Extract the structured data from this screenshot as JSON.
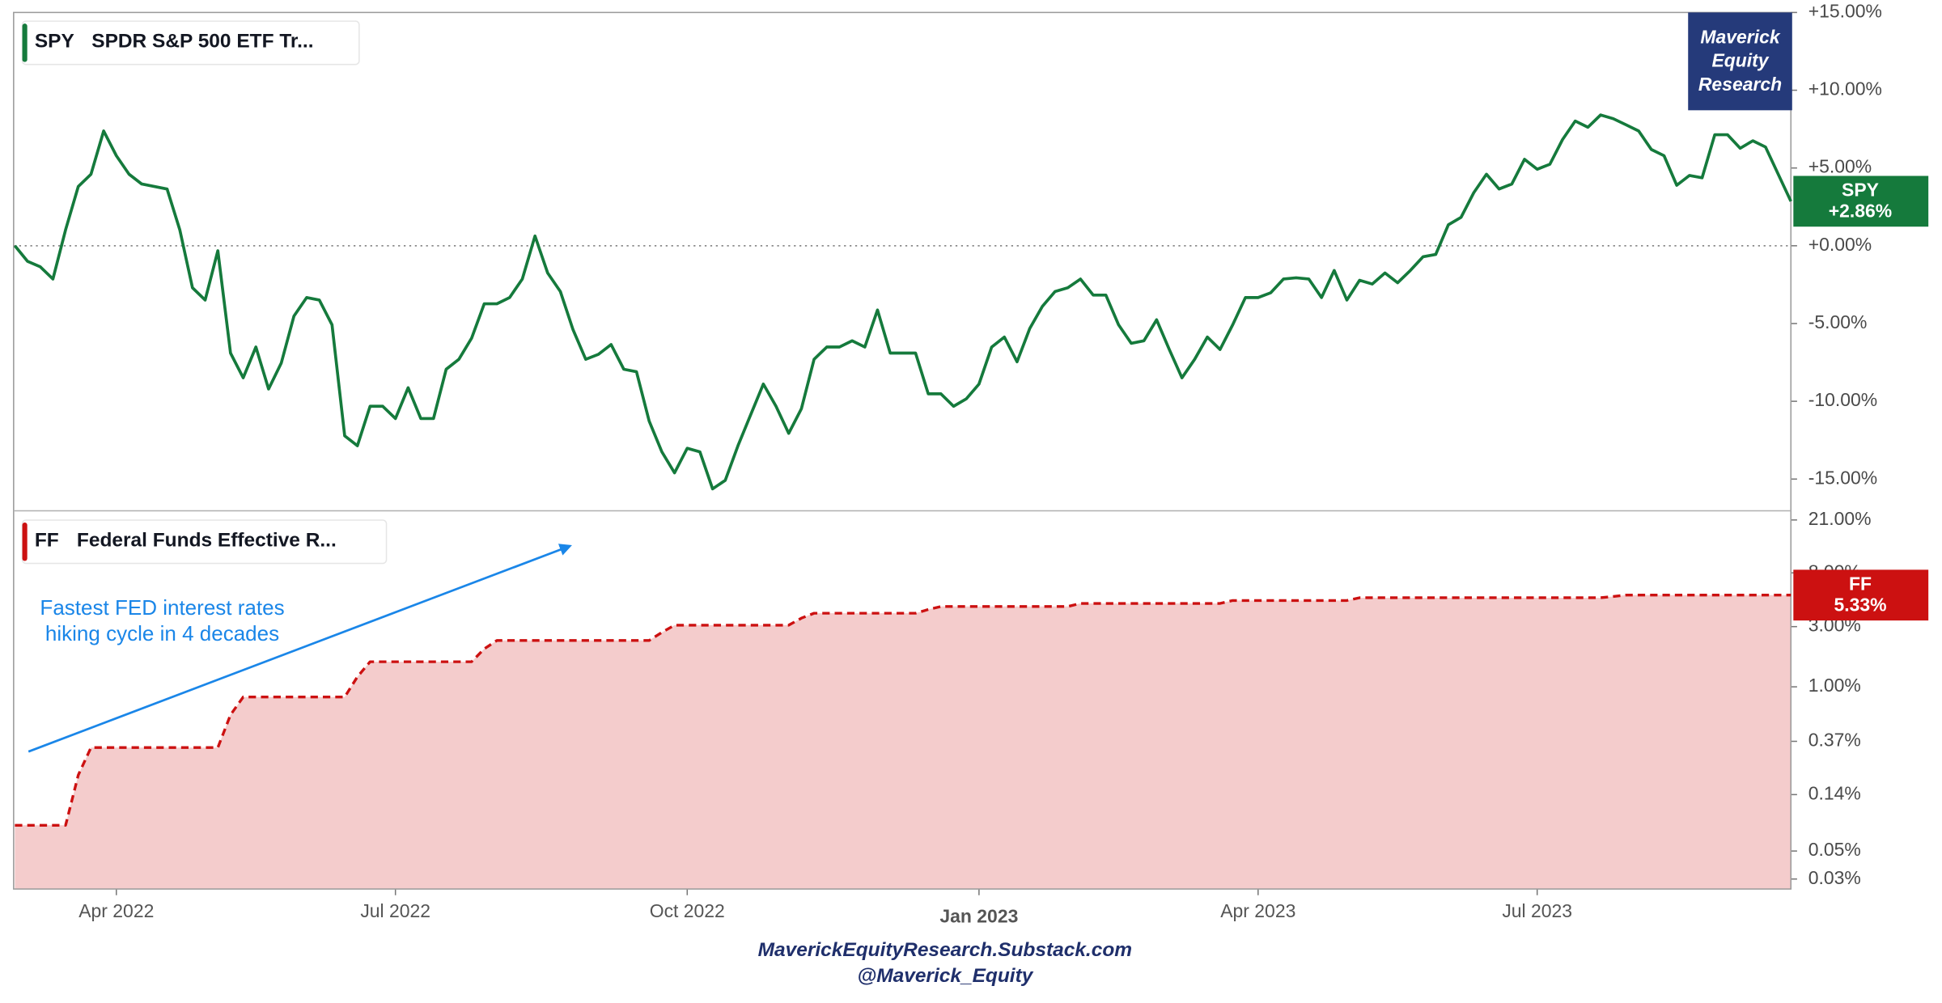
{
  "chart_data": [
    {
      "type": "line",
      "series": [
        {
          "name": "SPY",
          "description": "SPDR S&P 500 ETF Tr...",
          "color": "#157a3c",
          "last_label": "+2.86%",
          "values": [
            0,
            -1.0,
            -1.35,
            -2.14,
            1.03,
            3.81,
            4.6,
            7.38,
            5.79,
            4.6,
            3.97,
            3.81,
            3.65,
            1.03,
            -2.7,
            -3.49,
            -0.32,
            -6.9,
            -8.49,
            -6.51,
            -9.21,
            -7.54,
            -4.52,
            -3.33,
            -3.49,
            -5.08,
            -12.22,
            -12.86,
            -10.32,
            -10.32,
            -11.11,
            -9.13,
            -11.11,
            -11.11,
            -7.94,
            -7.3,
            -5.95,
            -3.73,
            -3.73,
            -3.33,
            -2.14,
            0.63,
            -1.75,
            -2.94,
            -5.4,
            -7.3,
            -6.98,
            -6.35,
            -7.94,
            -8.1,
            -11.27,
            -13.25,
            -14.6,
            -13.02,
            -13.25,
            -15.63,
            -15.08,
            -12.86,
            -10.87,
            -8.89,
            -10.32,
            -12.06,
            -10.48,
            -7.3,
            -6.51,
            -6.51,
            -6.11,
            -6.51,
            -4.13,
            -6.9,
            -6.9,
            -6.9,
            -9.52,
            -9.52,
            -10.32,
            -9.84,
            -8.89,
            -6.51,
            -5.87,
            -7.46,
            -5.32,
            -3.89,
            -2.94,
            -2.7,
            -2.14,
            -3.17,
            -3.17,
            -5.08,
            -6.27,
            -6.11,
            -4.76,
            -6.67,
            -8.49,
            -7.3,
            -5.87,
            -6.67,
            -5.08,
            -3.33,
            -3.33,
            -3.02,
            -2.14,
            -2.06,
            -2.14,
            -3.33,
            -1.59,
            -3.49,
            -2.22,
            -2.46,
            -1.75,
            -2.38,
            -1.59,
            -0.71,
            -0.56,
            1.35,
            1.83,
            3.41,
            4.6,
            3.65,
            3.97,
            5.56,
            4.92,
            5.24,
            6.83,
            8.02,
            7.62,
            8.41,
            8.17,
            7.78,
            7.38,
            6.19,
            5.79,
            3.89,
            4.52,
            4.37,
            7.14,
            7.14,
            6.27,
            6.75,
            6.35,
            4.6,
            2.86
          ]
        }
      ],
      "ylim": [
        -17,
        15
      ],
      "yticks": [
        {
          "value": 15,
          "label": "+15.00%"
        },
        {
          "value": 10,
          "label": "+10.00%"
        },
        {
          "value": 5,
          "label": "+5.00%"
        },
        {
          "value": 0,
          "label": "+0.00%"
        },
        {
          "value": -5,
          "label": "-5.00%"
        },
        {
          "value": -10,
          "label": "-10.00%"
        },
        {
          "value": -15,
          "label": "-15.00%"
        }
      ],
      "zero_line": true
    },
    {
      "type": "area",
      "log_scale": true,
      "categories": [
        null,
        null,
        null,
        null,
        null,
        null,
        null,
        null,
        "Apr 2022",
        null,
        null,
        null,
        null,
        null,
        null,
        null,
        null,
        null,
        null,
        null,
        null,
        null,
        null,
        null,
        null,
        null,
        null,
        null,
        null,
        null,
        "Jul 2022",
        null,
        null,
        null,
        null,
        null,
        null,
        null,
        null,
        null,
        null,
        null,
        null,
        null,
        null,
        null,
        null,
        null,
        null,
        null,
        null,
        null,
        null,
        "Oct 2022",
        null,
        null,
        null,
        null,
        null,
        null,
        null,
        null,
        null,
        null,
        null,
        null,
        null,
        null,
        null,
        null,
        null,
        null,
        null,
        null,
        null,
        null,
        "Jan 2023",
        null,
        null,
        null,
        null,
        null,
        null,
        null,
        null,
        null,
        null,
        null,
        null,
        null,
        null,
        null,
        null,
        null,
        null,
        null,
        null,
        null,
        "Apr 2023",
        null,
        null,
        null,
        null,
        null,
        null,
        null,
        null,
        null,
        null,
        null,
        null,
        null,
        null,
        null,
        null,
        null,
        null,
        null,
        null,
        null,
        "Jul 2023",
        null,
        null,
        null,
        null,
        null,
        null,
        null,
        null,
        null,
        null,
        null,
        null,
        null,
        null,
        null,
        null,
        null,
        null,
        null,
        null
      ],
      "series": [
        {
          "name": "FF",
          "description": "Federal Funds Effective R...",
          "color": "#cc1111",
          "fill": "#f4cccc",
          "dashed": true,
          "last_label": "5.33%",
          "values": [
            0.08,
            0.08,
            0.08,
            0.08,
            0.08,
            0.2,
            0.33,
            0.33,
            0.33,
            0.33,
            0.33,
            0.33,
            0.33,
            0.33,
            0.33,
            0.33,
            0.33,
            0.6,
            0.83,
            0.83,
            0.83,
            0.83,
            0.83,
            0.83,
            0.83,
            0.83,
            0.83,
            1.2,
            1.58,
            1.58,
            1.58,
            1.58,
            1.58,
            1.58,
            1.58,
            1.58,
            1.58,
            2.0,
            2.33,
            2.33,
            2.33,
            2.33,
            2.33,
            2.33,
            2.33,
            2.33,
            2.33,
            2.33,
            2.33,
            2.33,
            2.33,
            2.7,
            3.08,
            3.08,
            3.08,
            3.08,
            3.08,
            3.08,
            3.08,
            3.08,
            3.08,
            3.08,
            3.5,
            3.83,
            3.83,
            3.83,
            3.83,
            3.83,
            3.83,
            3.83,
            3.83,
            3.83,
            4.1,
            4.33,
            4.33,
            4.33,
            4.33,
            4.33,
            4.33,
            4.33,
            4.33,
            4.33,
            4.33,
            4.33,
            4.58,
            4.58,
            4.58,
            4.58,
            4.58,
            4.58,
            4.58,
            4.58,
            4.58,
            4.58,
            4.58,
            4.58,
            4.83,
            4.83,
            4.83,
            4.83,
            4.83,
            4.83,
            4.83,
            4.83,
            4.83,
            4.83,
            5.08,
            5.08,
            5.08,
            5.08,
            5.08,
            5.08,
            5.08,
            5.08,
            5.08,
            5.08,
            5.08,
            5.08,
            5.08,
            5.08,
            5.08,
            5.08,
            5.08,
            5.08,
            5.08,
            5.08,
            5.2,
            5.33,
            5.33,
            5.33,
            5.33,
            5.33,
            5.33,
            5.33,
            5.33,
            5.33,
            5.33,
            5.33,
            5.33,
            5.33,
            5.33
          ]
        }
      ],
      "ylim": [
        0.025,
        24
      ],
      "yticks": [
        {
          "value": 21,
          "label": "21.00%"
        },
        {
          "value": 8,
          "label": "8.00%"
        },
        {
          "value": 3,
          "label": "3.00%"
        },
        {
          "value": 1,
          "label": "1.00%"
        },
        {
          "value": 0.37,
          "label": "0.37%"
        },
        {
          "value": 0.14,
          "label": "0.14%"
        },
        {
          "value": 0.05,
          "label": "0.05%"
        },
        {
          "value": 0.03,
          "label": "0.03%"
        }
      ],
      "annotation": [
        "Fastest FED interest rates",
        "hiking cycle in 4 decades"
      ]
    }
  ],
  "logo": [
    "Maverick",
    "Equity",
    "Research"
  ],
  "footer": [
    "MaverickEquityResearch.Substack.com",
    "@Maverick_Equity"
  ]
}
